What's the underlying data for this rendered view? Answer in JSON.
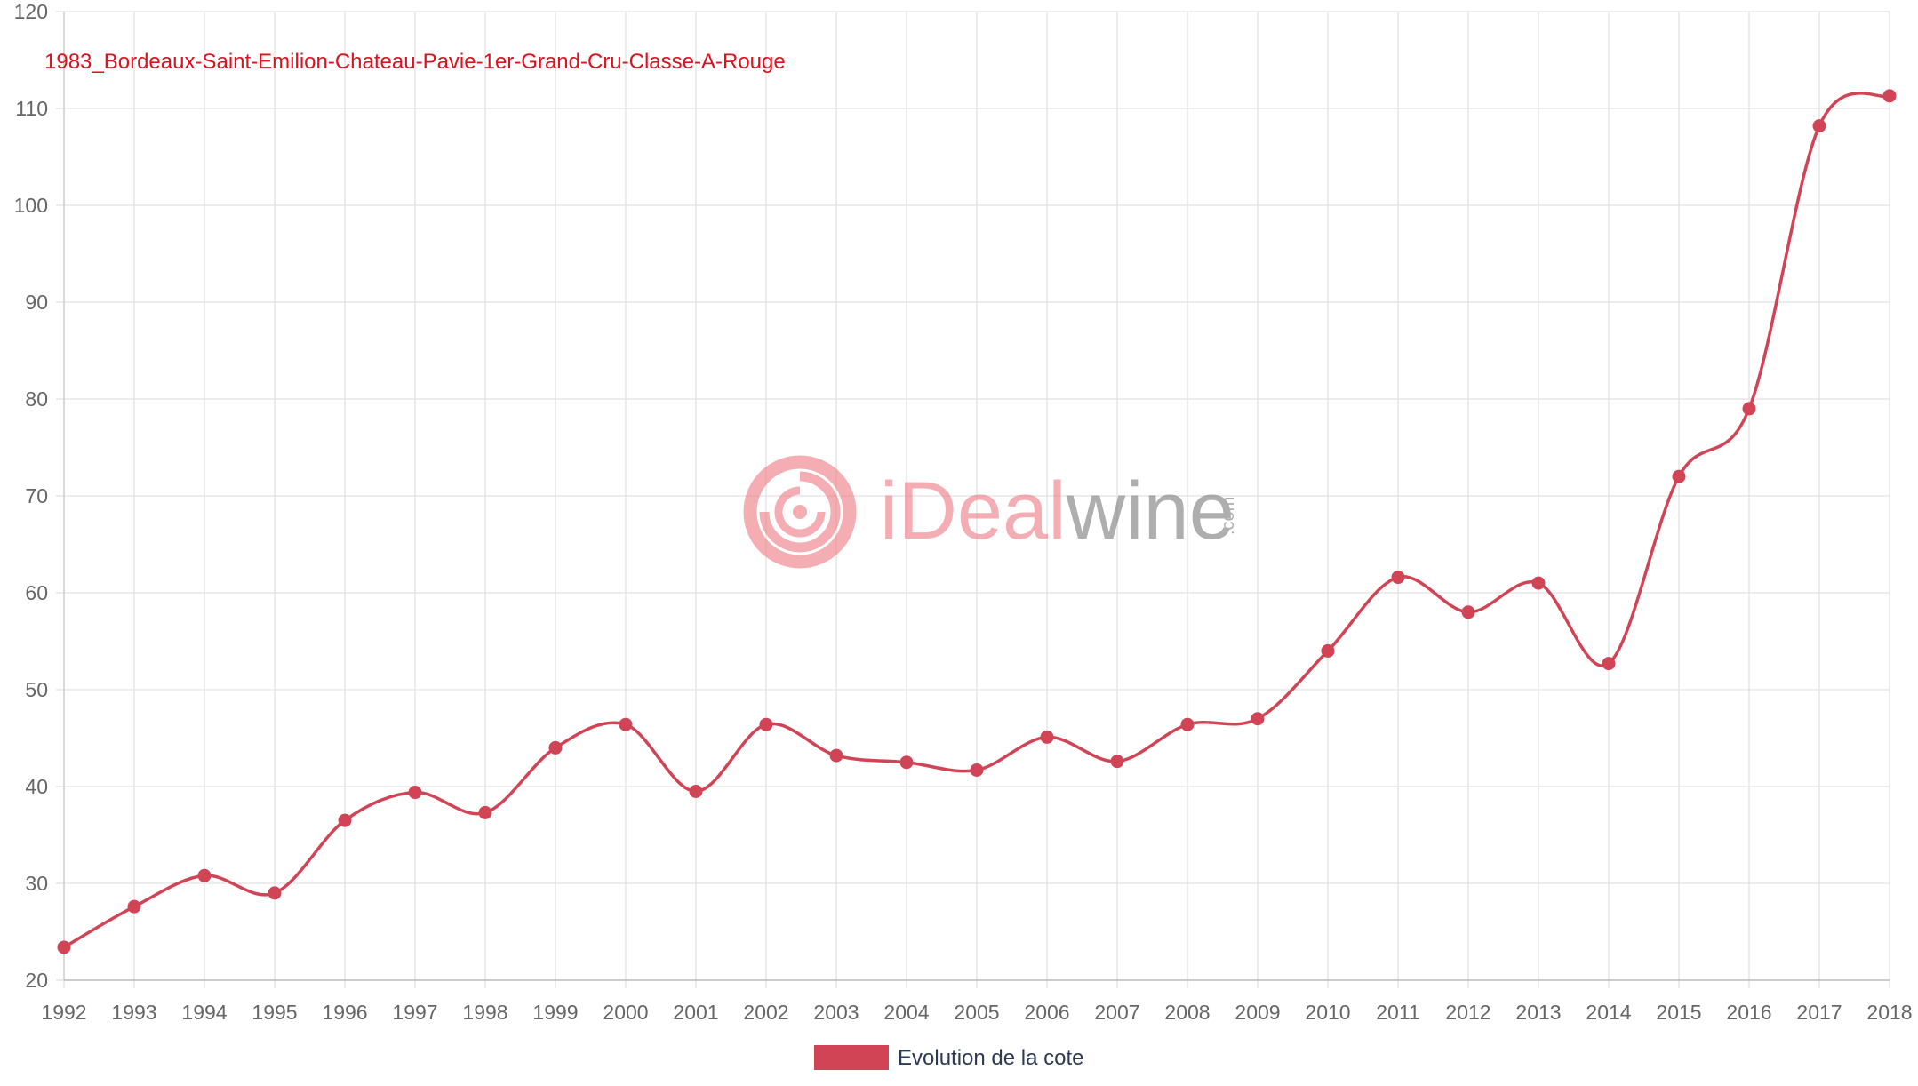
{
  "chart_data": {
    "type": "line",
    "title": "1983_Bordeaux-Saint-Emilion-Chateau-Pavie-1er-Grand-Cru-Classe-A-Rouge",
    "x": [
      "1992",
      "1993",
      "1994",
      "1995",
      "1996",
      "1997",
      "1998",
      "1999",
      "2000",
      "2001",
      "2002",
      "2003",
      "2004",
      "2005",
      "2006",
      "2007",
      "2008",
      "2009",
      "2010",
      "2011",
      "2012",
      "2013",
      "2014",
      "2015",
      "2016",
      "2017",
      "2018"
    ],
    "series": [
      {
        "name": "Evolution de la cote",
        "values": [
          23.4,
          27.6,
          30.8,
          29.0,
          36.5,
          39.4,
          37.3,
          44.0,
          46.4,
          39.5,
          46.4,
          43.2,
          42.5,
          41.7,
          45.1,
          42.6,
          46.4,
          47.0,
          54.0,
          61.6,
          58.0,
          61.0,
          52.7,
          72.0,
          79.0,
          108.2,
          111.3
        ]
      }
    ],
    "yticks": [
      "20",
      "30",
      "40",
      "50",
      "60",
      "70",
      "80",
      "90",
      "100",
      "110",
      "120"
    ],
    "ylim": [
      20,
      120
    ],
    "grid": true,
    "legend": "bottom",
    "colors": {
      "series": "#d14455",
      "title": "#e0101e",
      "grid": "#e2e2e2"
    },
    "watermark": {
      "brand_part1": "iDeal",
      "brand_part2": "wine",
      "brand_suffix": ".com"
    }
  }
}
